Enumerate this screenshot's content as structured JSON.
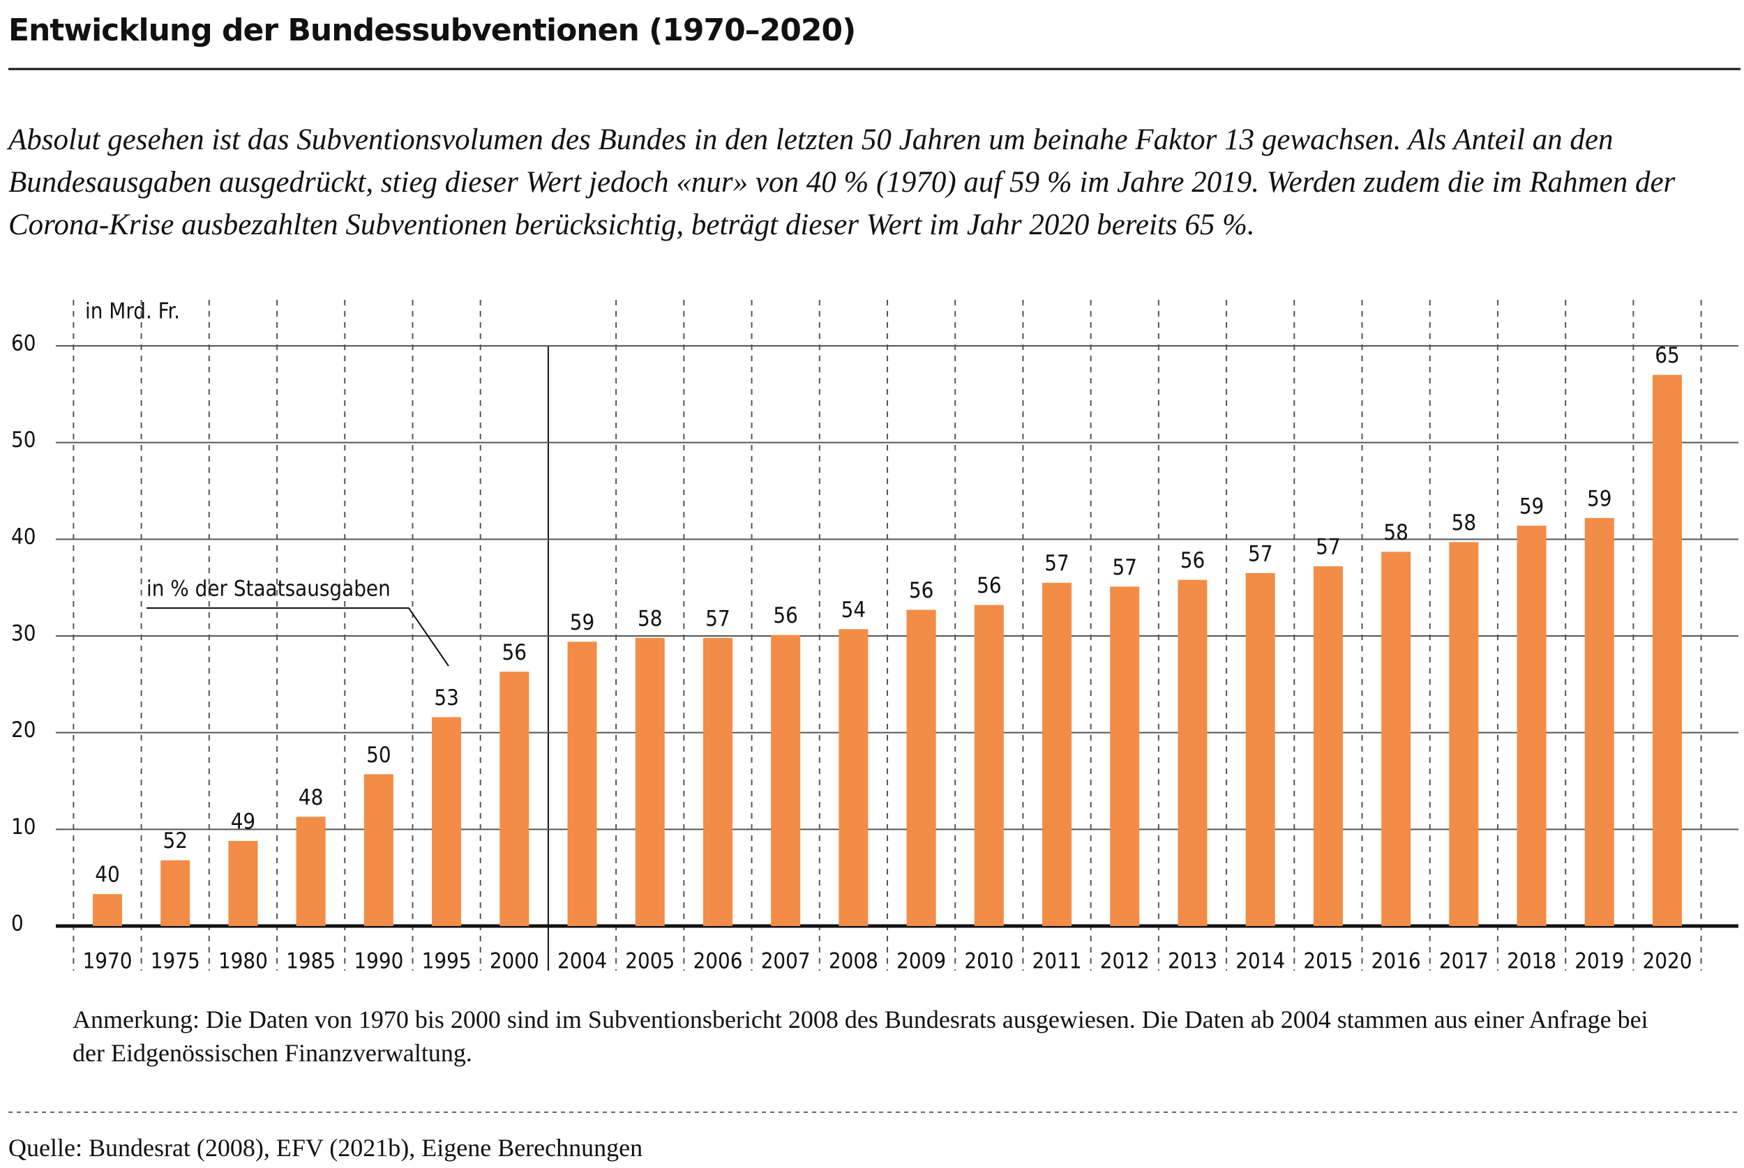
{
  "chart_data": {
    "type": "bar",
    "title": "Entwicklung der Bundessubventionen (1970–2020)",
    "subtitle": "Absolut gesehen ist das Subventionsvolumen des Bundes in den letzten 50 Jahren um beinahe Faktor 13 gewachsen. Als Anteil an den Bundesausgaben ausgedrückt, stieg dieser Wert jedoch «nur» von 40 % (1970) auf 59 % im Jahre 2019. Werden zudem die im Rahmen der Corona-Krise ausbezahlten Subventionen berücksichtig, beträgt dieser Wert im Jahr 2020 bereits 65 %.",
    "y_axis_label": "in Mrd. Fr.",
    "share_label": "in % der Staatsausgaben",
    "categories": [
      "1970",
      "1975",
      "1980",
      "1985",
      "1990",
      "1995",
      "2000",
      "2004",
      "2005",
      "2006",
      "2007",
      "2008",
      "2009",
      "2010",
      "2011",
      "2012",
      "2013",
      "2014",
      "2015",
      "2016",
      "2017",
      "2018",
      "2019",
      "2020"
    ],
    "values": [
      3.3,
      6.8,
      8.8,
      11.3,
      15.7,
      21.6,
      26.3,
      29.4,
      29.8,
      29.8,
      30.1,
      30.7,
      32.7,
      33.2,
      35.5,
      35.1,
      35.8,
      36.5,
      37.2,
      38.7,
      39.7,
      41.4,
      42.2,
      57.0
    ],
    "share_values": [
      40,
      52,
      49,
      48,
      50,
      53,
      56,
      59,
      58,
      57,
      56,
      54,
      56,
      56,
      57,
      57,
      56,
      57,
      57,
      58,
      58,
      59,
      59,
      65
    ],
    "color": "#f28c46",
    "ylim": [
      0,
      60
    ],
    "yticks": [
      0,
      10,
      20,
      30,
      40,
      50,
      60
    ],
    "grid": true,
    "note": "Anmerkung: Die Daten von 1970 bis 2000 sind im Subventionsbericht 2008 des Bundesrats ausgewiesen. Die Daten ab 2004 stammen aus einer Anfrage bei der Eidgenössischen Finanzverwaltung.",
    "source": "Quelle: Bundesrat (2008), EFV (2021b), Eigene Berechnungen"
  }
}
